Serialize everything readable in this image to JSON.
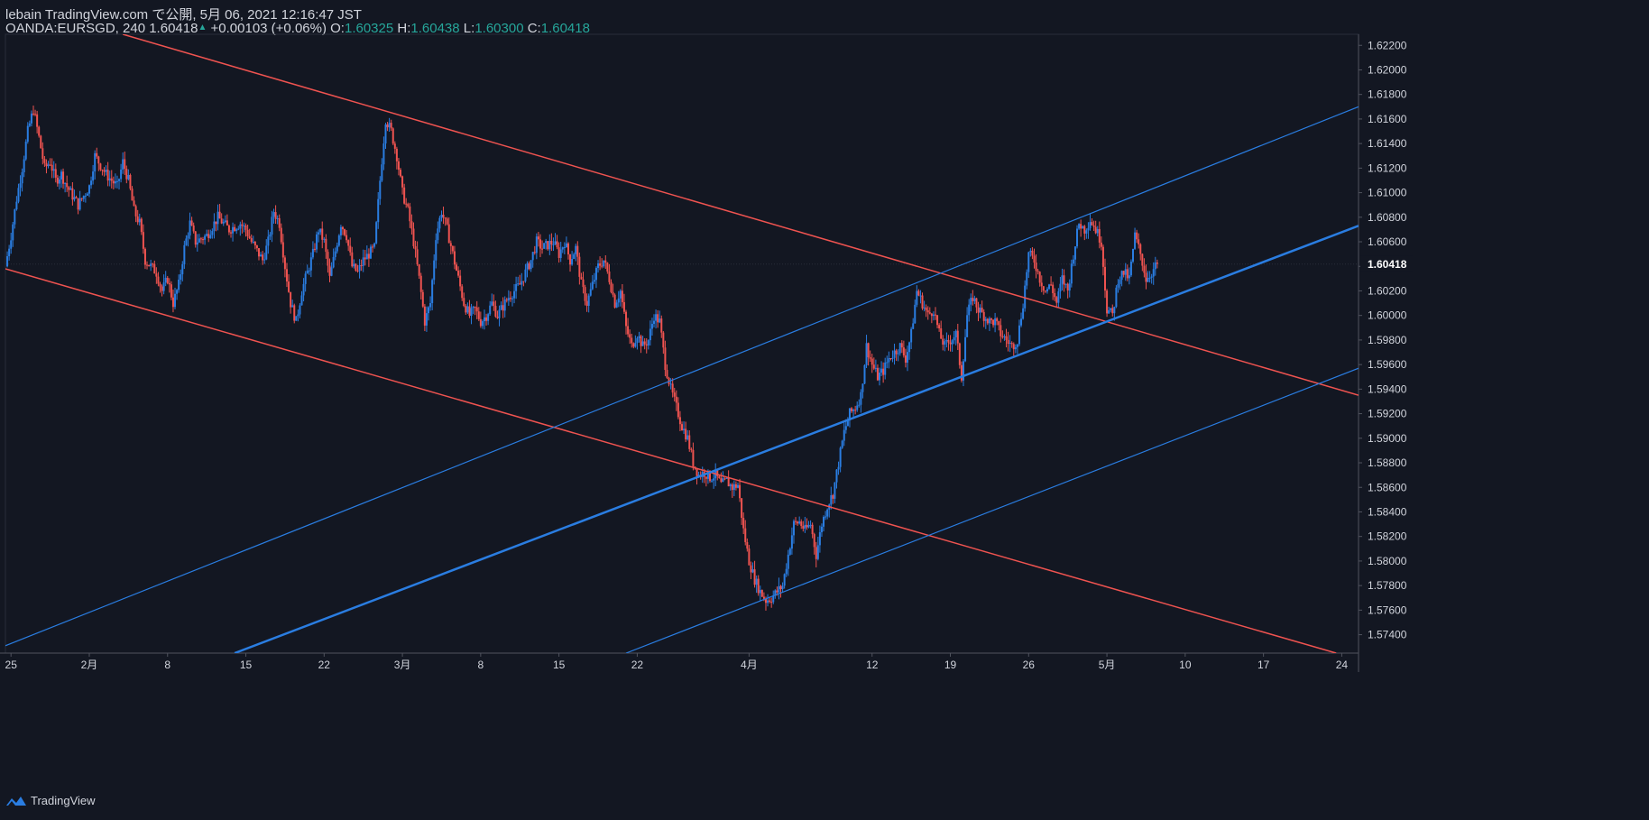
{
  "header": {
    "publish_line": "lebain TradingView.com で公開, 5月 06, 2021 12:16:47 JST",
    "symbol": "OANDA:EURSGD, 240",
    "last": "1.60418",
    "change": "+0.00103 (+0.06%)",
    "open_label": "O:",
    "open": "1.60325",
    "high_label": "H:",
    "high": "1.60438",
    "low_label": "L:",
    "low": "1.60300",
    "close_label": "C:",
    "close": "1.60418"
  },
  "footer": {
    "brand": "TradingView",
    "logo_icon": "tradingview-logo-icon"
  },
  "colors": {
    "background": "#131722",
    "bull": "#2a7de1",
    "bear": "#ef5350",
    "channel_blue": "#2a7de1",
    "channel_red": "#ef5350",
    "axis_text": "#d1d4dc"
  },
  "chart_data": {
    "type": "candlestick",
    "instrument": "OANDA:EURSGD",
    "timeframe": "240",
    "ylim": [
      1.5725,
      1.6229
    ],
    "y_ticks": [
      "1.62200",
      "1.62000",
      "1.61800",
      "1.61600",
      "1.61400",
      "1.61200",
      "1.61000",
      "1.60800",
      "1.60600",
      "1.60400",
      "1.60200",
      "1.60000",
      "1.59800",
      "1.59600",
      "1.59400",
      "1.59200",
      "1.59000",
      "1.58800",
      "1.58600",
      "1.58400",
      "1.58200",
      "1.58000",
      "1.57800",
      "1.57600",
      "1.57400"
    ],
    "last_price_label": "1.60418",
    "x_axis": {
      "start": "2021-01-24T12:00",
      "end": "2021-05-25T12:00",
      "ticks": [
        {
          "label": "25",
          "date": "2021-01-25"
        },
        {
          "label": "2月",
          "date": "2021-02-01"
        },
        {
          "label": "8",
          "date": "2021-02-08"
        },
        {
          "label": "15",
          "date": "2021-02-15"
        },
        {
          "label": "22",
          "date": "2021-02-22"
        },
        {
          "label": "3月",
          "date": "2021-03-01"
        },
        {
          "label": "8",
          "date": "2021-03-08"
        },
        {
          "label": "15",
          "date": "2021-03-15"
        },
        {
          "label": "22",
          "date": "2021-03-22"
        },
        {
          "label": "4月",
          "date": "2021-04-01"
        },
        {
          "label": "12",
          "date": "2021-04-12"
        },
        {
          "label": "19",
          "date": "2021-04-19"
        },
        {
          "label": "26",
          "date": "2021-04-26"
        },
        {
          "label": "5月",
          "date": "2021-05-03"
        },
        {
          "label": "10",
          "date": "2021-05-10"
        },
        {
          "label": "17",
          "date": "2021-05-17"
        },
        {
          "label": "24",
          "date": "2021-05-24"
        }
      ]
    },
    "close_path": [
      [
        "2021-01-24T12:00",
        1.604
      ],
      [
        "2021-01-25T00:00",
        1.6065
      ],
      [
        "2021-01-25T12:00",
        1.6095
      ],
      [
        "2021-01-26T00:00",
        1.612
      ],
      [
        "2021-01-26T12:00",
        1.615
      ],
      [
        "2021-01-27T00:00",
        1.6168
      ],
      [
        "2021-01-27T12:00",
        1.6145
      ],
      [
        "2021-01-28T00:00",
        1.612
      ],
      [
        "2021-01-28T12:00",
        1.6125
      ],
      [
        "2021-01-29T00:00",
        1.611
      ],
      [
        "2021-01-29T12:00",
        1.6115
      ],
      [
        "2021-01-30T00:00",
        1.6105
      ],
      [
        "2021-01-31T00:00",
        1.609
      ],
      [
        "2021-02-01T00:00",
        1.6105
      ],
      [
        "2021-02-01T12:00",
        1.613
      ],
      [
        "2021-02-02T12:00",
        1.6115
      ],
      [
        "2021-02-03T12:00",
        1.6105
      ],
      [
        "2021-02-04T00:00",
        1.6125
      ],
      [
        "2021-02-04T12:00",
        1.611
      ],
      [
        "2021-02-05T00:00",
        1.6085
      ],
      [
        "2021-02-05T12:00",
        1.6075
      ],
      [
        "2021-02-06T00:00",
        1.6045
      ],
      [
        "2021-02-07T00:00",
        1.6035
      ],
      [
        "2021-02-07T12:00",
        1.602
      ],
      [
        "2021-02-08T00:00",
        1.603
      ],
      [
        "2021-02-08T12:00",
        1.601
      ],
      [
        "2021-02-09T00:00",
        1.6025
      ],
      [
        "2021-02-09T12:00",
        1.6055
      ],
      [
        "2021-02-10T00:00",
        1.6075
      ],
      [
        "2021-02-10T12:00",
        1.606
      ],
      [
        "2021-02-11T12:00",
        1.6065
      ],
      [
        "2021-02-12T12:00",
        1.608
      ],
      [
        "2021-02-13T00:00",
        1.6075
      ],
      [
        "2021-02-13T12:00",
        1.607
      ],
      [
        "2021-02-14T12:00",
        1.6075
      ],
      [
        "2021-02-15T00:00",
        1.607
      ],
      [
        "2021-02-15T12:00",
        1.606
      ],
      [
        "2021-02-16T12:00",
        1.6045
      ],
      [
        "2021-02-17T00:00",
        1.606
      ],
      [
        "2021-02-17T12:00",
        1.6085
      ],
      [
        "2021-02-18T00:00",
        1.6075
      ],
      [
        "2021-02-18T12:00",
        1.604
      ],
      [
        "2021-02-19T00:00",
        1.601
      ],
      [
        "2021-02-19T12:00",
        1.5995
      ],
      [
        "2021-02-20T00:00",
        1.602
      ],
      [
        "2021-02-20T12:00",
        1.6035
      ],
      [
        "2021-02-21T00:00",
        1.605
      ],
      [
        "2021-02-21T12:00",
        1.607
      ],
      [
        "2021-02-22T00:00",
        1.606
      ],
      [
        "2021-02-22T12:00",
        1.603
      ],
      [
        "2021-02-23T12:00",
        1.6075
      ],
      [
        "2021-02-24T00:00",
        1.6065
      ],
      [
        "2021-02-24T12:00",
        1.604
      ],
      [
        "2021-02-25T00:00",
        1.6035
      ],
      [
        "2021-02-25T12:00",
        1.6045
      ],
      [
        "2021-02-26T12:00",
        1.6055
      ],
      [
        "2021-02-27T00:00",
        1.611
      ],
      [
        "2021-02-27T12:00",
        1.616
      ],
      [
        "2021-02-28T00:00",
        1.615
      ],
      [
        "2021-02-28T12:00",
        1.613
      ],
      [
        "2021-03-01T00:00",
        1.61
      ],
      [
        "2021-03-01T12:00",
        1.6085
      ],
      [
        "2021-03-02T00:00",
        1.606
      ],
      [
        "2021-03-02T12:00",
        1.603
      ],
      [
        "2021-03-03T00:00",
        1.5995
      ],
      [
        "2021-03-03T12:00",
        1.601
      ],
      [
        "2021-03-04T00:00",
        1.6065
      ],
      [
        "2021-03-04T12:00",
        1.6085
      ],
      [
        "2021-03-05T00:00",
        1.607
      ],
      [
        "2021-03-05T12:00",
        1.605
      ],
      [
        "2021-03-06T00:00",
        1.603
      ],
      [
        "2021-03-06T12:00",
        1.601
      ],
      [
        "2021-03-07T00:00",
        1.6
      ],
      [
        "2021-03-07T12:00",
        1.6005
      ],
      [
        "2021-03-08T00:00",
        1.5995
      ],
      [
        "2021-03-08T12:00",
        1.6
      ],
      [
        "2021-03-09T00:00",
        1.601
      ],
      [
        "2021-03-09T12:00",
        1.6
      ],
      [
        "2021-03-10T12:00",
        1.6015
      ],
      [
        "2021-03-11T00:00",
        1.602
      ],
      [
        "2021-03-11T12:00",
        1.6025
      ],
      [
        "2021-03-12T12:00",
        1.6045
      ],
      [
        "2021-03-13T00:00",
        1.606
      ],
      [
        "2021-03-13T12:00",
        1.6055
      ],
      [
        "2021-03-14T12:00",
        1.606
      ],
      [
        "2021-03-15T00:00",
        1.605
      ],
      [
        "2021-03-15T12:00",
        1.606
      ],
      [
        "2021-03-16T00:00",
        1.6045
      ],
      [
        "2021-03-16T12:00",
        1.6055
      ],
      [
        "2021-03-17T00:00",
        1.6025
      ],
      [
        "2021-03-17T12:00",
        1.601
      ],
      [
        "2021-03-18T00:00",
        1.6025
      ],
      [
        "2021-03-18T12:00",
        1.604
      ],
      [
        "2021-03-19T00:00",
        1.6045
      ],
      [
        "2021-03-19T12:00",
        1.603
      ],
      [
        "2021-03-20T00:00",
        1.601
      ],
      [
        "2021-03-20T12:00",
        1.602
      ],
      [
        "2021-03-21T00:00",
        1.599
      ],
      [
        "2021-03-21T12:00",
        1.5975
      ],
      [
        "2021-03-22T00:00",
        1.5985
      ],
      [
        "2021-03-22T12:00",
        1.5975
      ],
      [
        "2021-03-23T00:00",
        1.598
      ],
      [
        "2021-03-23T12:00",
        1.6
      ],
      [
        "2021-03-24T00:00",
        1.5995
      ],
      [
        "2021-03-24T12:00",
        1.596
      ],
      [
        "2021-03-25T00:00",
        1.594
      ],
      [
        "2021-03-25T12:00",
        1.5925
      ],
      [
        "2021-03-26T00:00",
        1.591
      ],
      [
        "2021-03-26T12:00",
        1.59
      ],
      [
        "2021-03-27T00:00",
        1.588
      ],
      [
        "2021-03-27T12:00",
        1.587
      ],
      [
        "2021-03-28T00:00",
        1.5872
      ],
      [
        "2021-03-28T12:00",
        1.5868
      ],
      [
        "2021-03-29T00:00",
        1.587
      ],
      [
        "2021-03-29T12:00",
        1.5862
      ],
      [
        "2021-03-30T00:00",
        1.5865
      ],
      [
        "2021-03-30T12:00",
        1.586
      ],
      [
        "2021-03-31T00:00",
        1.5862
      ],
      [
        "2021-03-31T12:00",
        1.5825
      ],
      [
        "2021-04-01T00:00",
        1.58
      ],
      [
        "2021-04-01T12:00",
        1.5785
      ],
      [
        "2021-04-02T00:00",
        1.5775
      ],
      [
        "2021-04-02T12:00",
        1.5768
      ],
      [
        "2021-04-03T00:00",
        1.577
      ],
      [
        "2021-04-03T12:00",
        1.5775
      ],
      [
        "2021-04-04T00:00",
        1.578
      ],
      [
        "2021-04-04T12:00",
        1.5805
      ],
      [
        "2021-04-05T00:00",
        1.583
      ],
      [
        "2021-04-05T12:00",
        1.5832
      ],
      [
        "2021-04-06T00:00",
        1.5825
      ],
      [
        "2021-04-06T12:00",
        1.583
      ],
      [
        "2021-04-07T00:00",
        1.5805
      ],
      [
        "2021-04-07T12:00",
        1.583
      ],
      [
        "2021-04-08T00:00",
        1.5845
      ],
      [
        "2021-04-08T12:00",
        1.5855
      ],
      [
        "2021-04-09T00:00",
        1.588
      ],
      [
        "2021-04-09T12:00",
        1.5905
      ],
      [
        "2021-04-10T00:00",
        1.592
      ],
      [
        "2021-04-10T12:00",
        1.5925
      ],
      [
        "2021-04-11T00:00",
        1.5935
      ],
      [
        "2021-04-11T12:00",
        1.5975
      ],
      [
        "2021-04-12T00:00",
        1.596
      ],
      [
        "2021-04-12T12:00",
        1.595
      ],
      [
        "2021-04-13T00:00",
        1.5955
      ],
      [
        "2021-04-13T12:00",
        1.5965
      ],
      [
        "2021-04-14T00:00",
        1.597
      ],
      [
        "2021-04-14T12:00",
        1.5975
      ],
      [
        "2021-04-15T00:00",
        1.5965
      ],
      [
        "2021-04-15T12:00",
        1.5985
      ],
      [
        "2021-04-16T00:00",
        1.602
      ],
      [
        "2021-04-16T12:00",
        1.601
      ],
      [
        "2021-04-17T00:00",
        1.6
      ],
      [
        "2021-04-17T12:00",
        1.6005
      ],
      [
        "2021-04-18T00:00",
        1.5985
      ],
      [
        "2021-04-18T12:00",
        1.5975
      ],
      [
        "2021-04-19T00:00",
        1.598
      ],
      [
        "2021-04-19T12:00",
        1.5985
      ],
      [
        "2021-04-20T00:00",
        1.595
      ],
      [
        "2021-04-20T12:00",
        1.6
      ],
      [
        "2021-04-21T00:00",
        1.6015
      ],
      [
        "2021-04-21T12:00",
        1.6005
      ],
      [
        "2021-04-22T00:00",
        1.6
      ],
      [
        "2021-04-22T12:00",
        1.5995
      ],
      [
        "2021-04-23T00:00",
        1.5995
      ],
      [
        "2021-04-23T12:00",
        1.5985
      ],
      [
        "2021-04-24T00:00",
        1.598
      ],
      [
        "2021-04-24T12:00",
        1.5975
      ],
      [
        "2021-04-25T00:00",
        1.598
      ],
      [
        "2021-04-25T12:00",
        1.601
      ],
      [
        "2021-04-26T00:00",
        1.605
      ],
      [
        "2021-04-26T12:00",
        1.6045
      ],
      [
        "2021-04-27T00:00",
        1.603
      ],
      [
        "2021-04-27T12:00",
        1.602
      ],
      [
        "2021-04-28T00:00",
        1.6025
      ],
      [
        "2021-04-28T12:00",
        1.601
      ],
      [
        "2021-04-29T00:00",
        1.603
      ],
      [
        "2021-04-29T12:00",
        1.602
      ],
      [
        "2021-04-30T00:00",
        1.605
      ],
      [
        "2021-04-30T12:00",
        1.6075
      ],
      [
        "2021-05-01T00:00",
        1.607
      ],
      [
        "2021-05-01T12:00",
        1.6078
      ],
      [
        "2021-05-02T00:00",
        1.607
      ],
      [
        "2021-05-02T12:00",
        1.606
      ],
      [
        "2021-05-03T00:00",
        1.6005
      ],
      [
        "2021-05-03T12:00",
        1.6
      ],
      [
        "2021-05-04T00:00",
        1.603
      ],
      [
        "2021-05-04T12:00",
        1.6035
      ],
      [
        "2021-05-05T00:00",
        1.603
      ],
      [
        "2021-05-05T12:00",
        1.6065
      ],
      [
        "2021-05-06T00:00",
        1.605
      ],
      [
        "2021-05-06T12:00",
        1.603
      ],
      [
        "2021-05-07T00:00",
        1.6035
      ],
      [
        "2021-05-07T12:00",
        1.6042
      ]
    ],
    "trendlines": [
      {
        "color": "red",
        "width": 1.5,
        "p1": [
          "2021-01-24T12:00",
          1.6038
        ],
        "p2": [
          "2021-05-23T12:00",
          1.5725
        ]
      },
      {
        "color": "red",
        "width": 1.5,
        "p1": [
          "2021-02-04T00:00",
          1.6229
        ],
        "p2": [
          "2021-05-25T12:00",
          1.5935
        ]
      },
      {
        "color": "blue",
        "width": 1.2,
        "p1": [
          "2021-01-24T12:00",
          1.5731
        ],
        "p2": [
          "2021-05-25T12:00",
          1.617
        ]
      },
      {
        "color": "blue",
        "width": 2.5,
        "p1": [
          "2021-02-14T00:00",
          1.5725
        ],
        "p2": [
          "2021-05-25T12:00",
          1.6073
        ]
      },
      {
        "color": "blue",
        "width": 1.2,
        "p1": [
          "2021-03-21T00:00",
          1.5725
        ],
        "p2": [
          "2021-05-25T12:00",
          1.5957
        ]
      }
    ]
  }
}
